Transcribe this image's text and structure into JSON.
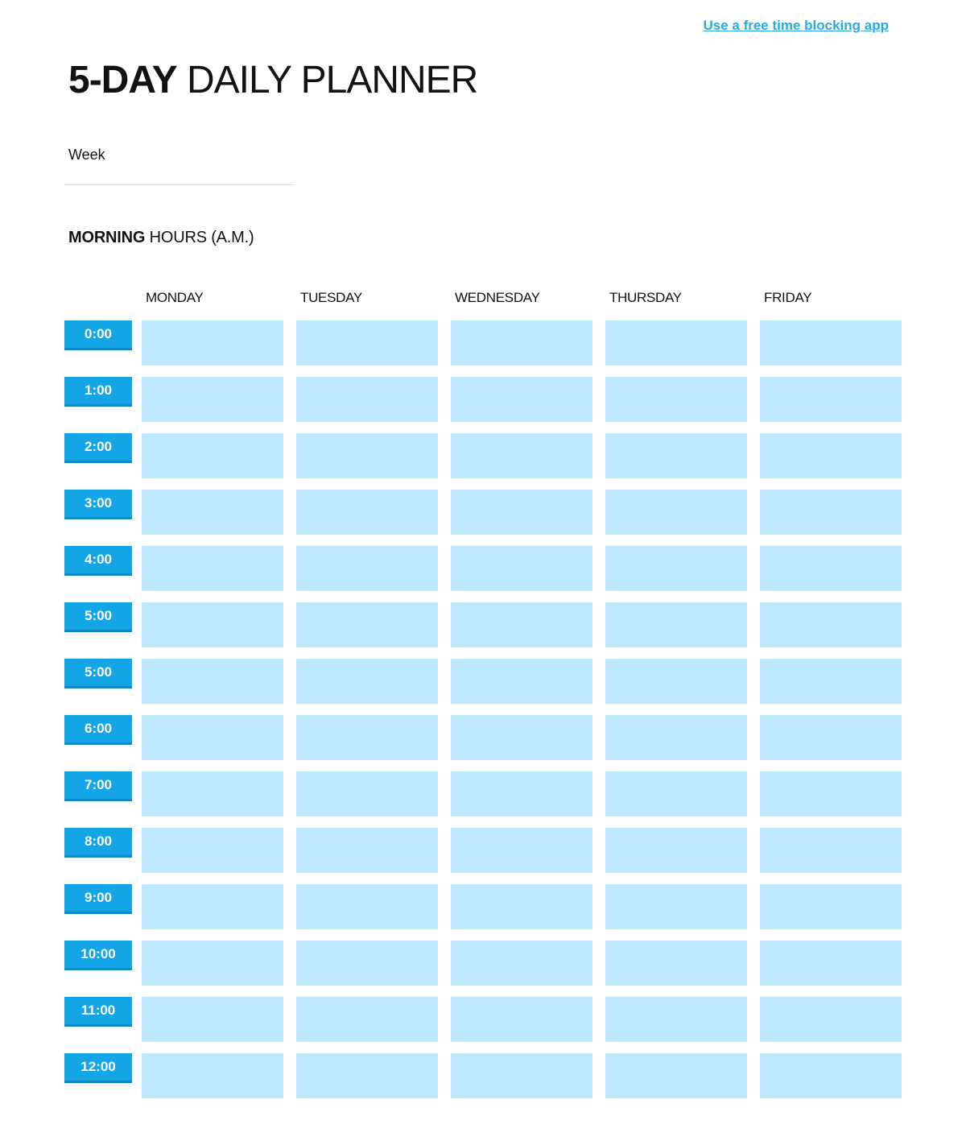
{
  "link": {
    "label": "Use a free time blocking app"
  },
  "title": {
    "bold": "5-DAY",
    "regular": "DAILY PLANNER"
  },
  "week": {
    "label": "Week",
    "value": ""
  },
  "section": {
    "bold": "MORNING",
    "regular": "HOURS (A.M.)"
  },
  "days": [
    "MONDAY",
    "TUESDAY",
    "WEDNESDAY",
    "THURSDAY",
    "FRIDAY"
  ],
  "times": [
    "0:00",
    "1:00",
    "2:00",
    "3:00",
    "4:00",
    "5:00",
    "5:00",
    "6:00",
    "7:00",
    "8:00",
    "9:00",
    "10:00",
    "11:00",
    "12:00"
  ],
  "colors": {
    "badge": "#14a5e6",
    "badge_shadow": "#0e8bc7",
    "cell": "#bee7fb",
    "link": "#29a9e0",
    "week_line": "#cde0ea"
  }
}
